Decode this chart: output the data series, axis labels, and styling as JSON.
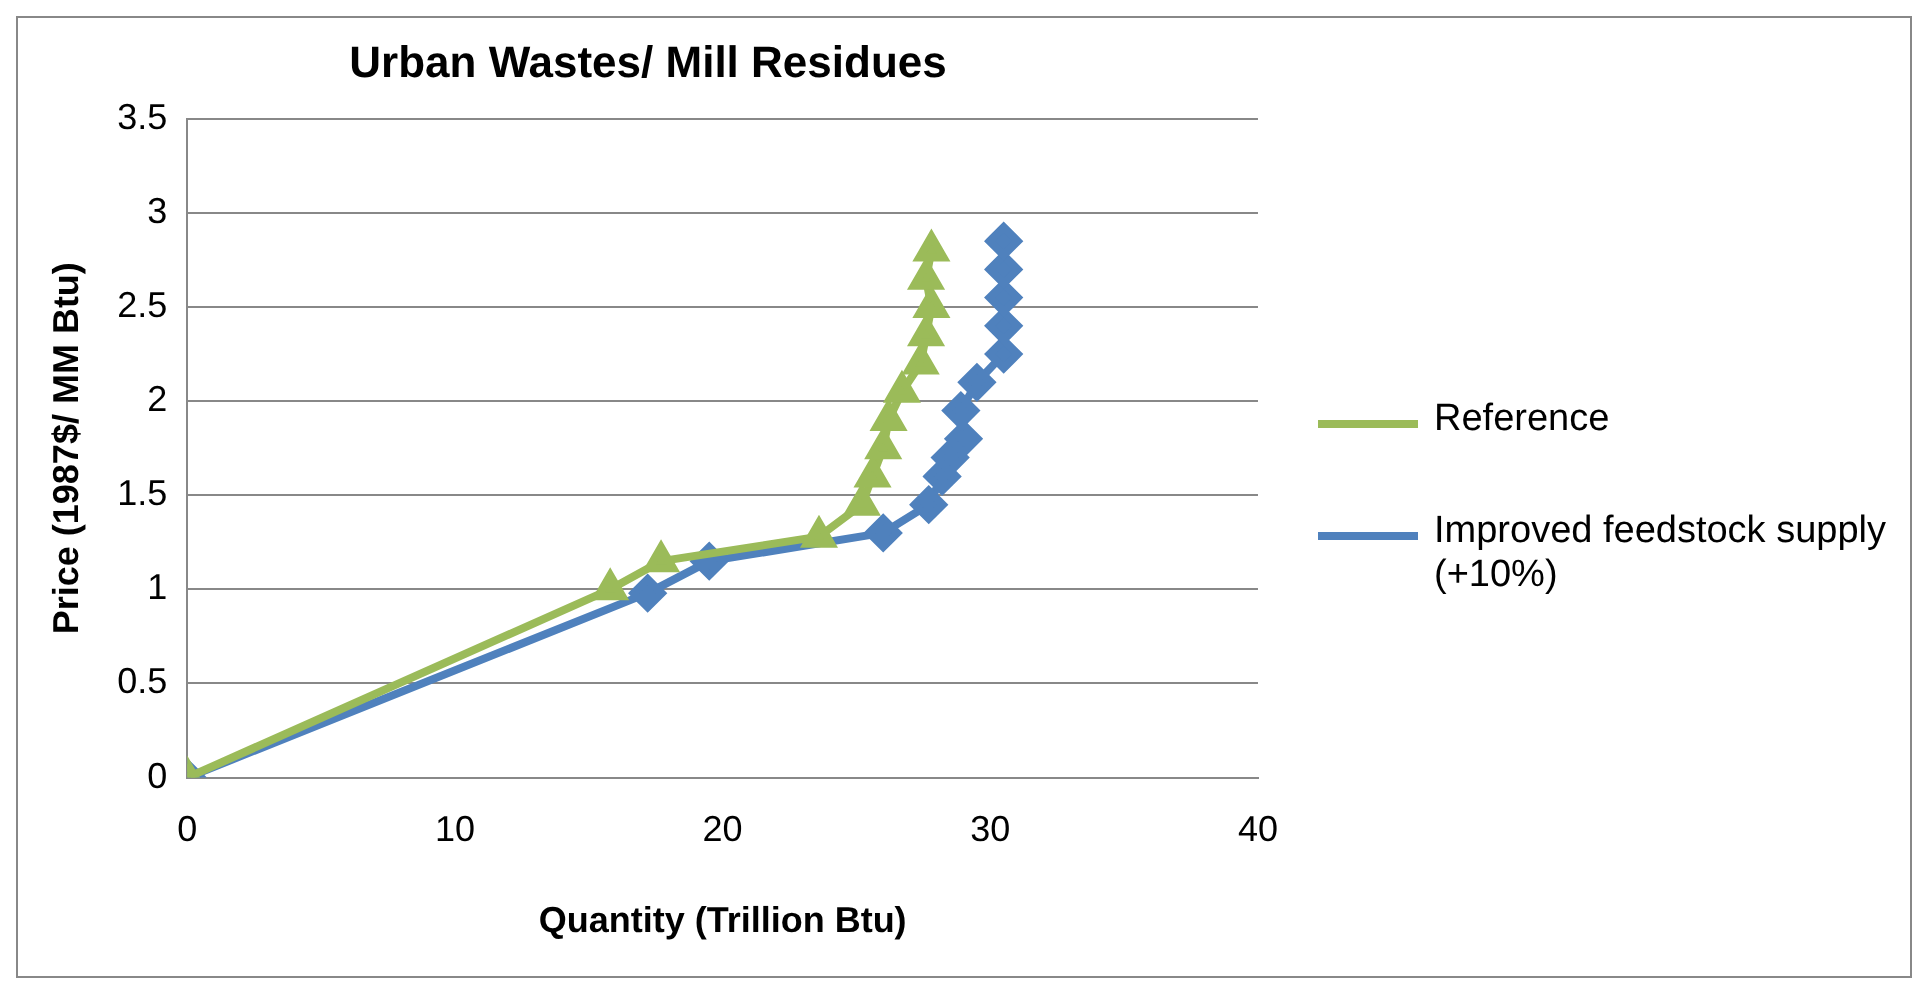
{
  "chart_data": {
    "type": "line",
    "title": "Urban Wastes/ Mill Residues",
    "xlabel": "Quantity (Trillion Btu)",
    "ylabel": "Price (1987$/ MM Btu)",
    "xlim": [
      0,
      40
    ],
    "xticks": [
      0,
      10,
      20,
      30,
      40
    ],
    "ylim": [
      0,
      3.5
    ],
    "yticks": [
      0,
      0.5,
      1,
      1.5,
      2,
      2.5,
      3,
      3.5
    ],
    "grid": "y",
    "legend": "right",
    "series": [
      {
        "name": "Reference",
        "color": "#9bbb59",
        "marker": "triangle",
        "x": [
          0,
          15.8,
          17.7,
          23.6,
          25.2,
          25.6,
          26,
          26.2,
          26.7,
          27.4,
          27.6,
          27.8,
          27.6,
          27.8
        ],
        "values": [
          0,
          1,
          1.15,
          1.28,
          1.45,
          1.6,
          1.75,
          1.9,
          2.05,
          2.2,
          2.35,
          2.5,
          2.65,
          2.8
        ]
      },
      {
        "name": "Improved feedstock supply (+10%)",
        "color": "#4f81bd",
        "marker": "diamond",
        "x": [
          0,
          17.2,
          19.5,
          26,
          27.7,
          28.2,
          28.5,
          29,
          28.9,
          29.5,
          30.5,
          30.5,
          30.5,
          30.5,
          30.5
        ],
        "values": [
          0,
          0.98,
          1.15,
          1.3,
          1.45,
          1.6,
          1.7,
          1.8,
          1.95,
          2.1,
          2.25,
          2.4,
          2.55,
          2.7,
          2.85
        ]
      }
    ]
  }
}
